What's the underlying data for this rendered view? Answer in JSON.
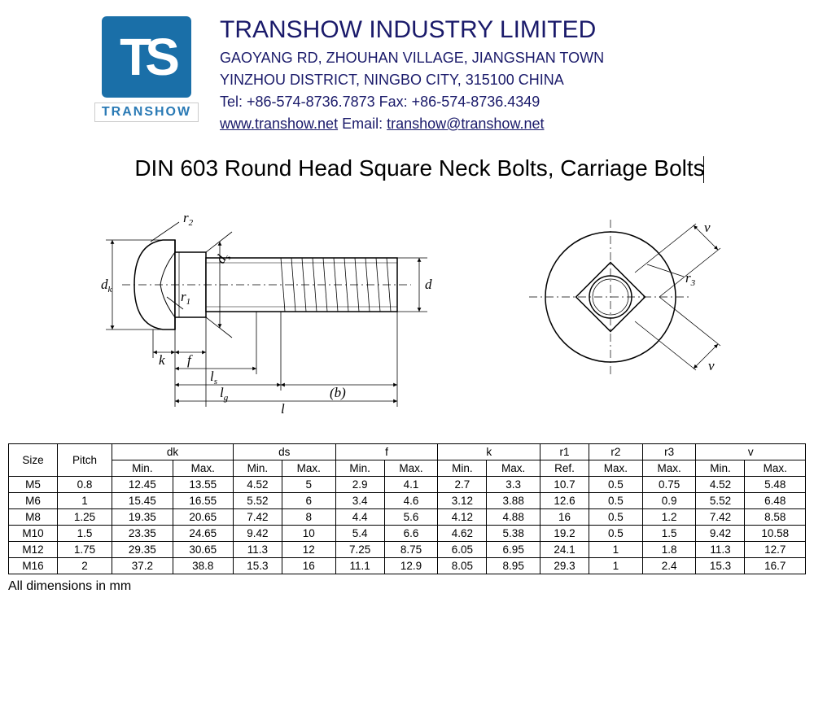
{
  "header": {
    "logo_letters": "TS",
    "logo_caption": "TRANSHOW",
    "company_name": "TRANSHOW INDUSTRY LIMITED",
    "addr_line1": "GAOYANG RD, ZHOUHAN VILLAGE, JIANGSHAN TOWN",
    "addr_line2": "YINZHOU DISTRICT,  NINGBO CITY,  315100  CHINA",
    "tel_fax": "Tel: +86-574-8736.7873 Fax: +86-574-8736.4349",
    "website": "www.transhow.net",
    "email_label": " Email: ",
    "email": "transhow@transhow.net"
  },
  "title": "DIN 603 Round Head Square Neck Bolts, Carriage Bolts",
  "diagram_labels": {
    "dk": "d",
    "dk_sub": "k",
    "ds": "d",
    "ds_sub": "s",
    "d": "d",
    "r1": "r",
    "r1_sub": "1",
    "r2": "r",
    "r2_sub": "2",
    "r3": "r",
    "r3_sub": "3",
    "k": "k",
    "f": "f",
    "ls": "l",
    "ls_sub": "s",
    "lg": "l",
    "lg_sub": "g",
    "l": "l",
    "b": "(b)",
    "v": "v"
  },
  "table": {
    "group_headers": [
      "Size",
      "Pitch",
      "dk",
      "ds",
      "f",
      "k",
      "r1",
      "r2",
      "r3",
      "v"
    ],
    "sub_headers": [
      "Min.",
      "Max.",
      "Min.",
      "Max.",
      "Min.",
      "Max.",
      "Min.",
      "Max.",
      "Ref.",
      "Max.",
      "Max.",
      "Min.",
      "Max."
    ],
    "rows": [
      [
        "M5",
        "0.8",
        "12.45",
        "13.55",
        "4.52",
        "5",
        "2.9",
        "4.1",
        "2.7",
        "3.3",
        "10.7",
        "0.5",
        "0.75",
        "4.52",
        "5.48"
      ],
      [
        "M6",
        "1",
        "15.45",
        "16.55",
        "5.52",
        "6",
        "3.4",
        "4.6",
        "3.12",
        "3.88",
        "12.6",
        "0.5",
        "0.9",
        "5.52",
        "6.48"
      ],
      [
        "M8",
        "1.25",
        "19.35",
        "20.65",
        "7.42",
        "8",
        "4.4",
        "5.6",
        "4.12",
        "4.88",
        "16",
        "0.5",
        "1.2",
        "7.42",
        "8.58"
      ],
      [
        "M10",
        "1.5",
        "23.35",
        "24.65",
        "9.42",
        "10",
        "5.4",
        "6.6",
        "4.62",
        "5.38",
        "19.2",
        "0.5",
        "1.5",
        "9.42",
        "10.58"
      ],
      [
        "M12",
        "1.75",
        "29.35",
        "30.65",
        "11.3",
        "12",
        "7.25",
        "8.75",
        "6.05",
        "6.95",
        "24.1",
        "1",
        "1.8",
        "11.3",
        "12.7"
      ],
      [
        "M16",
        "2",
        "37.2",
        "38.8",
        "15.3",
        "16",
        "11.1",
        "12.9",
        "8.05",
        "8.95",
        "29.3",
        "1",
        "2.4",
        "15.3",
        "16.7"
      ]
    ]
  },
  "footnote": "All dimensions in mm",
  "colors": {
    "brand_blue": "#1a6fa8",
    "text_navy": "#1a1a6a"
  }
}
